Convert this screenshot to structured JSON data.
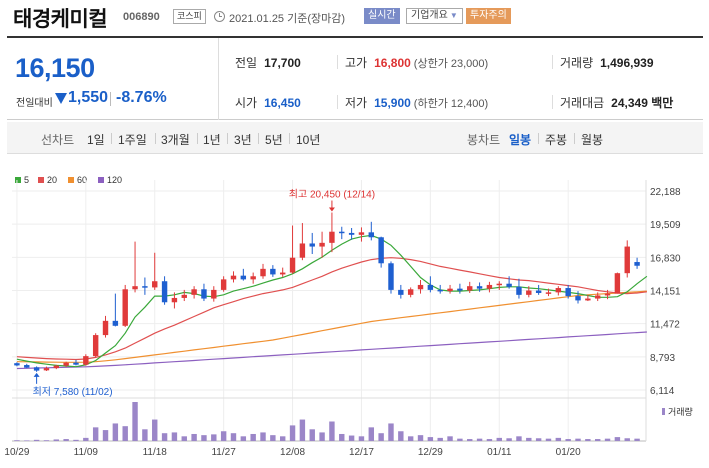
{
  "header": {
    "stock_name": "태경케미컬",
    "stock_code": "006890",
    "market": "코스피",
    "as_of": "2021.01.25 기준(장마감)",
    "realtime_label": "실시간",
    "company_overview_label": "기업개요",
    "caution_label": "투자주의"
  },
  "price": {
    "current": "16,150",
    "change_label": "전일대비",
    "change_amount": "1,550",
    "change_pct": "-8.76%",
    "direction": "down",
    "color": "#1a5fc8"
  },
  "stats": {
    "prev_close": {
      "label": "전일",
      "value": "17,700"
    },
    "open": {
      "label": "시가",
      "value": "16,450"
    },
    "high": {
      "label": "고가",
      "value": "16,800",
      "sub": "(상한가 23,000)"
    },
    "low": {
      "label": "저가",
      "value": "15,900",
      "sub": "(하한가 12,400)"
    },
    "volume": {
      "label": "거래량",
      "value": "1,496,939"
    },
    "amount": {
      "label": "거래대금",
      "value": "24,349 백만"
    }
  },
  "toolbar": {
    "line_label": "선차트",
    "line_periods": [
      "1일",
      "1주일",
      "3개월",
      "1년",
      "3년",
      "5년",
      "10년"
    ],
    "candle_label": "봉차트",
    "candle_periods": [
      "일봉",
      "주봉",
      "월봉"
    ],
    "active_candle": "일봉"
  },
  "legend": [
    {
      "label": "5",
      "color": "#3aa83a"
    },
    {
      "label": "20",
      "color": "#e05050"
    },
    {
      "label": "60",
      "color": "#f09030"
    },
    {
      "label": "120",
      "color": "#8c60c0"
    }
  ],
  "volume_label": "거래량",
  "chart_data": {
    "type": "candlestick",
    "y_ticks": [
      "22,188",
      "19,509",
      "16,830",
      "14,151",
      "11,472",
      "8,793",
      "6,114"
    ],
    "y_tick_values": [
      22188,
      19509,
      16830,
      14151,
      11472,
      8793,
      6114
    ],
    "x_ticks": [
      "10/29",
      "11/09",
      "11/18",
      "11/27",
      "12/08",
      "12/17",
      "12/29",
      "01/11",
      "01/20"
    ],
    "x_tick_index": [
      0,
      7,
      14,
      21,
      28,
      35,
      42,
      49,
      56
    ],
    "high_annotation": "최고 20,450 (12/14)",
    "high_index": 32,
    "low_annotation": "최저 7,580 (11/02)",
    "low_index": 2,
    "candles": [
      {
        "o": 8280,
        "h": 8350,
        "l": 8030,
        "c": 8100
      },
      {
        "o": 8130,
        "h": 8230,
        "l": 7880,
        "c": 7920
      },
      {
        "o": 7950,
        "h": 8020,
        "l": 7580,
        "c": 7680
      },
      {
        "o": 7700,
        "h": 8000,
        "l": 7650,
        "c": 7880
      },
      {
        "o": 7880,
        "h": 8150,
        "l": 7800,
        "c": 8080
      },
      {
        "o": 8080,
        "h": 8400,
        "l": 7980,
        "c": 8320
      },
      {
        "o": 8320,
        "h": 8550,
        "l": 8100,
        "c": 8160
      },
      {
        "o": 8160,
        "h": 9000,
        "l": 8080,
        "c": 8850
      },
      {
        "o": 8850,
        "h": 10700,
        "l": 8750,
        "c": 10550
      },
      {
        "o": 10550,
        "h": 12100,
        "l": 10350,
        "c": 11700
      },
      {
        "o": 11700,
        "h": 13900,
        "l": 11250,
        "c": 11300
      },
      {
        "o": 11300,
        "h": 14600,
        "l": 11200,
        "c": 14250
      },
      {
        "o": 14250,
        "h": 18100,
        "l": 14000,
        "c": 14500
      },
      {
        "o": 14500,
        "h": 15200,
        "l": 13800,
        "c": 14400
      },
      {
        "o": 14400,
        "h": 17200,
        "l": 14200,
        "c": 14900
      },
      {
        "o": 14900,
        "h": 15300,
        "l": 13000,
        "c": 13200
      },
      {
        "o": 13200,
        "h": 14000,
        "l": 12700,
        "c": 13550
      },
      {
        "o": 13550,
        "h": 14200,
        "l": 13300,
        "c": 13800
      },
      {
        "o": 13800,
        "h": 14500,
        "l": 13500,
        "c": 14250
      },
      {
        "o": 14250,
        "h": 14700,
        "l": 13300,
        "c": 13500
      },
      {
        "o": 13500,
        "h": 14500,
        "l": 13250,
        "c": 14200
      },
      {
        "o": 14200,
        "h": 15300,
        "l": 14050,
        "c": 15050
      },
      {
        "o": 15050,
        "h": 15700,
        "l": 14800,
        "c": 15350
      },
      {
        "o": 15350,
        "h": 15900,
        "l": 14950,
        "c": 15050
      },
      {
        "o": 15050,
        "h": 15600,
        "l": 14700,
        "c": 15300
      },
      {
        "o": 15300,
        "h": 16300,
        "l": 15100,
        "c": 15900
      },
      {
        "o": 15900,
        "h": 16200,
        "l": 15250,
        "c": 15450
      },
      {
        "o": 15450,
        "h": 16000,
        "l": 15250,
        "c": 15600
      },
      {
        "o": 15600,
        "h": 19400,
        "l": 15500,
        "c": 16800
      },
      {
        "o": 16800,
        "h": 19600,
        "l": 16600,
        "c": 17950
      },
      {
        "o": 17950,
        "h": 18800,
        "l": 17100,
        "c": 17700
      },
      {
        "o": 17700,
        "h": 18900,
        "l": 16800,
        "c": 18000
      },
      {
        "o": 18000,
        "h": 20450,
        "l": 17250,
        "c": 18900
      },
      {
        "o": 18900,
        "h": 19300,
        "l": 18300,
        "c": 18800
      },
      {
        "o": 18800,
        "h": 19200,
        "l": 18250,
        "c": 18650
      },
      {
        "o": 18650,
        "h": 19250,
        "l": 18100,
        "c": 18850
      },
      {
        "o": 18850,
        "h": 19700,
        "l": 18200,
        "c": 18450
      },
      {
        "o": 18450,
        "h": 18500,
        "l": 16000,
        "c": 16350
      },
      {
        "o": 16350,
        "h": 16500,
        "l": 13900,
        "c": 14200
      },
      {
        "o": 14200,
        "h": 14600,
        "l": 13500,
        "c": 13800
      },
      {
        "o": 13800,
        "h": 14400,
        "l": 13600,
        "c": 14250
      },
      {
        "o": 14250,
        "h": 15000,
        "l": 13900,
        "c": 14600
      },
      {
        "o": 14600,
        "h": 15300,
        "l": 14000,
        "c": 14200
      },
      {
        "o": 14200,
        "h": 14600,
        "l": 13900,
        "c": 14100
      },
      {
        "o": 14100,
        "h": 14600,
        "l": 13900,
        "c": 14300
      },
      {
        "o": 14300,
        "h": 14700,
        "l": 13900,
        "c": 14150
      },
      {
        "o": 14150,
        "h": 14850,
        "l": 13950,
        "c": 14500
      },
      {
        "o": 14500,
        "h": 14800,
        "l": 14050,
        "c": 14300
      },
      {
        "o": 14300,
        "h": 14850,
        "l": 14000,
        "c": 14600
      },
      {
        "o": 14600,
        "h": 14900,
        "l": 14200,
        "c": 14700
      },
      {
        "o": 14700,
        "h": 15300,
        "l": 14300,
        "c": 14450
      },
      {
        "o": 14450,
        "h": 15100,
        "l": 13500,
        "c": 13800
      },
      {
        "o": 13800,
        "h": 14500,
        "l": 13600,
        "c": 14150
      },
      {
        "o": 14150,
        "h": 14600,
        "l": 13800,
        "c": 13950
      },
      {
        "o": 13950,
        "h": 14300,
        "l": 13700,
        "c": 14000
      },
      {
        "o": 14000,
        "h": 14500,
        "l": 13750,
        "c": 14350
      },
      {
        "o": 14350,
        "h": 14600,
        "l": 13500,
        "c": 13700
      },
      {
        "o": 13700,
        "h": 14100,
        "l": 13100,
        "c": 13350
      },
      {
        "o": 13350,
        "h": 13800,
        "l": 13300,
        "c": 13500
      },
      {
        "o": 13500,
        "h": 14000,
        "l": 13300,
        "c": 13750
      },
      {
        "o": 13750,
        "h": 14200,
        "l": 13450,
        "c": 13900
      },
      {
        "o": 13900,
        "h": 15600,
        "l": 13900,
        "c": 15550
      },
      {
        "o": 15550,
        "h": 18200,
        "l": 15200,
        "c": 17700
      },
      {
        "o": 16450,
        "h": 16800,
        "l": 15900,
        "c": 16150
      }
    ],
    "volume": [
      0.02,
      0.015,
      0.03,
      0.02,
      0.04,
      0.05,
      0.03,
      0.08,
      0.35,
      0.28,
      0.45,
      0.38,
      1.0,
      0.3,
      0.55,
      0.2,
      0.22,
      0.12,
      0.18,
      0.15,
      0.17,
      0.25,
      0.2,
      0.12,
      0.18,
      0.22,
      0.15,
      0.12,
      0.4,
      0.55,
      0.3,
      0.22,
      0.5,
      0.18,
      0.14,
      0.12,
      0.35,
      0.2,
      0.45,
      0.25,
      0.12,
      0.15,
      0.1,
      0.08,
      0.12,
      0.06,
      0.05,
      0.06,
      0.05,
      0.08,
      0.07,
      0.12,
      0.08,
      0.07,
      0.06,
      0.08,
      0.05,
      0.06,
      0.05,
      0.05,
      0.06,
      0.1,
      0.07,
      0.06
    ],
    "ma5": [
      8600,
      8450,
      8300,
      8200,
      8100,
      8050,
      8000,
      8150,
      8500,
      9100,
      9700,
      10700,
      12000,
      12800,
      13700,
      13700,
      13800,
      14000,
      13900,
      13700,
      13650,
      13800,
      14100,
      14300,
      14500,
      14750,
      15000,
      15200,
      15500,
      15900,
      16400,
      16850,
      17400,
      17900,
      18300,
      18500,
      18600,
      18300,
      17800,
      17000,
      16100,
      15200,
      14600,
      14200,
      14100,
      14100,
      14150,
      14200,
      14300,
      14400,
      14450,
      14450,
      14350,
      14300,
      14200,
      14100,
      14000,
      13900,
      13750,
      13600,
      13600,
      13650,
      14050,
      14700,
      15300
    ],
    "ma20": [
      8800,
      8750,
      8700,
      8650,
      8620,
      8600,
      8580,
      8620,
      8750,
      8950,
      9200,
      9500,
      9900,
      10300,
      10700,
      11050,
      11350,
      11700,
      12050,
      12400,
      12750,
      13000,
      13250,
      13500,
      13700,
      13900,
      14050,
      14200,
      14400,
      14700,
      15000,
      15300,
      15650,
      15950,
      16200,
      16450,
      16650,
      16750,
      16800,
      16750,
      16650,
      16500,
      16300,
      16100,
      15950,
      15800,
      15650,
      15500,
      15350,
      15200,
      15100,
      15000,
      14950,
      14850,
      14750,
      14650,
      14550,
      14450,
      14300,
      14150,
      14050,
      13950,
      13900,
      13950,
      14050
    ],
    "ma60": [
      8400,
      8390,
      8380,
      8370,
      8360,
      8350,
      8350,
      8360,
      8400,
      8470,
      8550,
      8650,
      8750,
      8850,
      8950,
      9050,
      9150,
      9250,
      9350,
      9450,
      9550,
      9650,
      9750,
      9850,
      9950,
      10050,
      10150,
      10300,
      10450,
      10600,
      10750,
      10900,
      11050,
      11200,
      11350,
      11500,
      11650,
      11750,
      11850,
      11950,
      12050,
      12150,
      12250,
      12350,
      12450,
      12550,
      12650,
      12750,
      12850,
      12950,
      13050,
      13150,
      13250,
      13350,
      13450,
      13550,
      13650,
      13750,
      13800,
      13850,
      13900,
      13950,
      14000,
      14050,
      14100
    ],
    "ma120": [
      7850,
      7870,
      7890,
      7910,
      7930,
      7950,
      7970,
      7990,
      8020,
      8060,
      8100,
      8150,
      8200,
      8250,
      8300,
      8350,
      8400,
      8450,
      8500,
      8550,
      8600,
      8650,
      8700,
      8750,
      8800,
      8850,
      8900,
      8950,
      9000,
      9050,
      9100,
      9150,
      9200,
      9250,
      9300,
      9350,
      9400,
      9450,
      9500,
      9550,
      9600,
      9650,
      9700,
      9750,
      9800,
      9850,
      9900,
      9950,
      10000,
      10050,
      10100,
      10150,
      10200,
      10250,
      10300,
      10350,
      10400,
      10450,
      10500,
      10550,
      10600,
      10650,
      10700,
      10750,
      10800
    ]
  }
}
